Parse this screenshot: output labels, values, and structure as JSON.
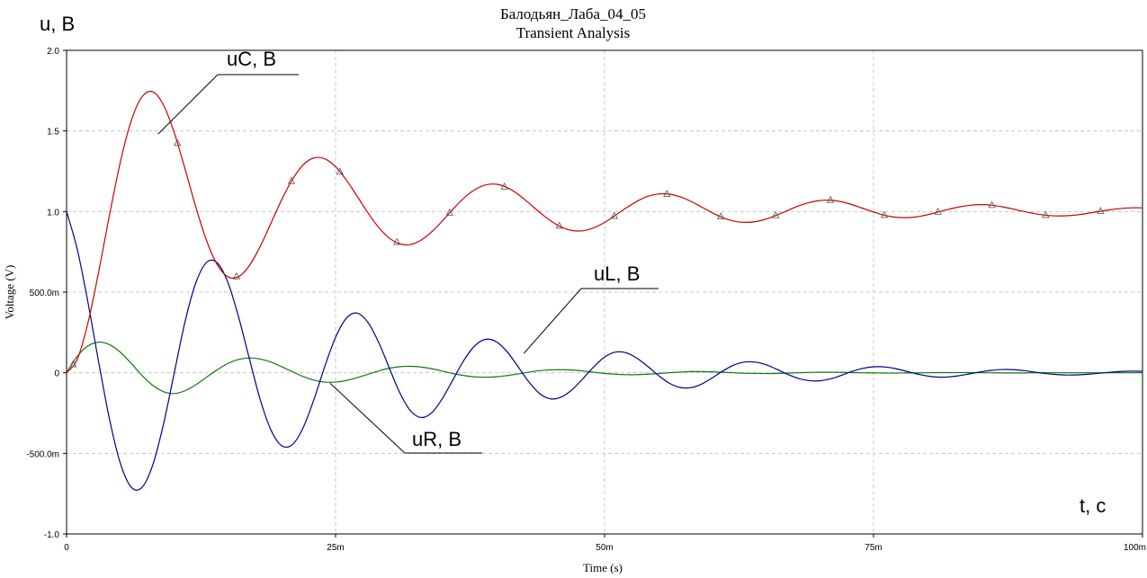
{
  "window": {
    "title": "Балодьян_Лаба_04_05",
    "subtitle": "Transient Analysis"
  },
  "chart_data": {
    "type": "line",
    "title": "Балодьян_Лаба_04_05",
    "subtitle": "Transient Analysis",
    "xlabel": "Time (s)",
    "ylabel": "Voltage (V)",
    "xlim": [
      0,
      0.1
    ],
    "ylim": [
      -1.0,
      2.0
    ],
    "grid": true,
    "x_ticks": [
      {
        "value": 0,
        "label": "0"
      },
      {
        "value": 0.025,
        "label": "25m"
      },
      {
        "value": 0.05,
        "label": "50m"
      },
      {
        "value": 0.075,
        "label": "75m"
      },
      {
        "value": 0.1,
        "label": "100m"
      }
    ],
    "y_ticks": [
      {
        "value": -1.0,
        "label": "-1.0"
      },
      {
        "value": -0.5,
        "label": "-500.0m"
      },
      {
        "value": 0,
        "label": "0"
      },
      {
        "value": 0.5,
        "label": "500.0m"
      },
      {
        "value": 1.0,
        "label": "1.0"
      },
      {
        "value": 1.5,
        "label": "1.5"
      },
      {
        "value": 2.0,
        "label": "2.0"
      }
    ],
    "series": [
      {
        "name": "uC, B",
        "color": "#cc0000",
        "marker": "triangle",
        "x": [
          0,
          0.001,
          0.002,
          0.003,
          0.004,
          0.005,
          0.006,
          0.007,
          0.008,
          0.009,
          0.01,
          0.011,
          0.012,
          0.013,
          0.014,
          0.015,
          0.016,
          0.017,
          0.018,
          0.019,
          0.02,
          0.021,
          0.022,
          0.023,
          0.024,
          0.025,
          0.026,
          0.027,
          0.028,
          0.029,
          0.03,
          0.031,
          0.032,
          0.033,
          0.034,
          0.035,
          0.036,
          0.037,
          0.038,
          0.039,
          0.04,
          0.041,
          0.042,
          0.043,
          0.044,
          0.045,
          0.046,
          0.047,
          0.048,
          0.049,
          0.05,
          0.051,
          0.052,
          0.053,
          0.054,
          0.055,
          0.056,
          0.057,
          0.058,
          0.059,
          0.06,
          0.061,
          0.062,
          0.063,
          0.064,
          0.065,
          0.066,
          0.067,
          0.068,
          0.069,
          0.07,
          0.071,
          0.072,
          0.073,
          0.074,
          0.075,
          0.076,
          0.077,
          0.078,
          0.079,
          0.08,
          0.081,
          0.082,
          0.083,
          0.084,
          0.085,
          0.086,
          0.087,
          0.088,
          0.089,
          0.09,
          0.091,
          0.092,
          0.093,
          0.094,
          0.095,
          0.096,
          0.097,
          0.098,
          0.099,
          0.1
        ],
        "values": [
          0.0,
          0.084,
          0.313,
          0.632,
          0.982,
          1.307,
          1.561,
          1.711,
          1.743,
          1.662,
          1.491,
          1.267,
          1.031,
          0.822,
          0.671,
          0.595,
          0.597,
          0.666,
          0.784,
          0.928,
          1.074,
          1.2,
          1.29,
          1.333,
          1.327,
          1.278,
          1.196,
          1.096,
          0.993,
          0.902,
          0.835,
          0.799,
          0.796,
          0.825,
          0.878,
          0.947,
          1.021,
          1.088,
          1.138,
          1.166,
          1.169,
          1.147,
          1.105,
          1.051,
          0.993,
          0.942,
          0.903,
          0.882,
          0.881,
          0.899,
          0.932,
          0.976,
          1.022,
          1.063,
          1.094,
          1.109,
          1.108,
          1.092,
          1.064,
          1.029,
          0.993,
          0.962,
          0.941,
          0.933,
          0.937,
          0.953,
          0.978,
          1.006,
          1.034,
          1.055,
          1.068,
          1.07,
          1.061,
          1.043,
          1.02,
          0.997,
          0.977,
          0.965,
          0.962,
          0.967,
          0.98,
          0.997,
          1.014,
          1.029,
          1.039,
          1.043,
          1.039,
          1.029,
          1.015,
          1.0,
          0.987,
          0.977,
          0.973,
          0.974,
          0.98,
          0.99,
          1.001,
          1.011,
          1.019,
          1.023,
          1.023
        ],
        "marker_x": [
          0.0006,
          0.0103,
          0.0158,
          0.0209,
          0.0254,
          0.0307,
          0.0356,
          0.0407,
          0.0458,
          0.0509,
          0.0558,
          0.0608,
          0.0659,
          0.071,
          0.076,
          0.081,
          0.086,
          0.091,
          0.0961
        ]
      },
      {
        "name": "uL, B",
        "color": "#00008b",
        "x": [
          0,
          0.001,
          0.002,
          0.003,
          0.004,
          0.005,
          0.006,
          0.007,
          0.008,
          0.009,
          0.01,
          0.011,
          0.012,
          0.013,
          0.014,
          0.015,
          0.016,
          0.017,
          0.018,
          0.019,
          0.02,
          0.021,
          0.022,
          0.023,
          0.024,
          0.025,
          0.026,
          0.027,
          0.028,
          0.029,
          0.03,
          0.031,
          0.032,
          0.033,
          0.034,
          0.035,
          0.036,
          0.037,
          0.038,
          0.039,
          0.04,
          0.041,
          0.042,
          0.043,
          0.044,
          0.045,
          0.046,
          0.047,
          0.048,
          0.049,
          0.05,
          0.051,
          0.052,
          0.053,
          0.054,
          0.055,
          0.056,
          0.057,
          0.058,
          0.059,
          0.06,
          0.061,
          0.062,
          0.063,
          0.064,
          0.065,
          0.066,
          0.067,
          0.068,
          0.069,
          0.07,
          0.071,
          0.072,
          0.073,
          0.074,
          0.075,
          0.076,
          0.077,
          0.078,
          0.079,
          0.08,
          0.081,
          0.082,
          0.083,
          0.084,
          0.085,
          0.086,
          0.087,
          0.088,
          0.089,
          0.09,
          0.091,
          0.092,
          0.093,
          0.094,
          0.095,
          0.096,
          0.097,
          0.098,
          0.099,
          0.1
        ],
        "values": [
          1.0,
          0.764,
          0.432,
          0.06,
          -0.291,
          -0.562,
          -0.709,
          -0.712,
          -0.574,
          -0.321,
          -0.004,
          0.314,
          0.555,
          0.684,
          0.682,
          0.559,
          0.343,
          0.085,
          -0.167,
          -0.356,
          -0.453,
          -0.445,
          -0.339,
          -0.164,
          0.039,
          0.22,
          0.338,
          0.37,
          0.313,
          0.189,
          0.029,
          -0.128,
          -0.239,
          -0.278,
          -0.244,
          -0.152,
          -0.032,
          0.085,
          0.171,
          0.208,
          0.19,
          0.126,
          0.034,
          -0.06,
          -0.131,
          -0.162,
          -0.15,
          -0.104,
          -0.036,
          0.037,
          0.097,
          0.128,
          0.124,
          0.091,
          0.04,
          -0.016,
          -0.064,
          -0.091,
          -0.093,
          -0.071,
          -0.032,
          0.011,
          0.047,
          0.066,
          0.066,
          0.05,
          0.022,
          -0.009,
          -0.035,
          -0.049,
          -0.05,
          -0.038,
          -0.016,
          0.008,
          0.027,
          0.037,
          0.036,
          0.026,
          0.01,
          -0.007,
          -0.02,
          -0.027,
          -0.026,
          -0.018,
          -0.006,
          0.006,
          0.015,
          0.02,
          0.019,
          0.013,
          0.004,
          -0.005,
          -0.011,
          -0.014,
          -0.013,
          -0.009,
          -0.003,
          0.003,
          0.008,
          0.01,
          0.009
        ]
      },
      {
        "name": "uR, B",
        "color": "#117711",
        "x": [
          0,
          0.001,
          0.002,
          0.003,
          0.004,
          0.005,
          0.006,
          0.007,
          0.008,
          0.009,
          0.01,
          0.011,
          0.012,
          0.013,
          0.014,
          0.015,
          0.016,
          0.017,
          0.018,
          0.019,
          0.02,
          0.021,
          0.022,
          0.023,
          0.024,
          0.025,
          0.026,
          0.027,
          0.028,
          0.029,
          0.03,
          0.031,
          0.032,
          0.033,
          0.034,
          0.035,
          0.036,
          0.037,
          0.038,
          0.039,
          0.04,
          0.041,
          0.042,
          0.043,
          0.044,
          0.045,
          0.046,
          0.047,
          0.048,
          0.049,
          0.05,
          0.051,
          0.052,
          0.053,
          0.054,
          0.055,
          0.056,
          0.057,
          0.058,
          0.059,
          0.06,
          0.061,
          0.062,
          0.063,
          0.064,
          0.065,
          0.066,
          0.067,
          0.068,
          0.069,
          0.07,
          0.071,
          0.072,
          0.073,
          0.074,
          0.075,
          0.076,
          0.077,
          0.078,
          0.079,
          0.08,
          0.081,
          0.082,
          0.083,
          0.084,
          0.085,
          0.086,
          0.087,
          0.088,
          0.089,
          0.09,
          0.091,
          0.092,
          0.093,
          0.094,
          0.095,
          0.096,
          0.097,
          0.098,
          0.099,
          0.1
        ],
        "values": [
          0.0,
          0.103,
          0.167,
          0.19,
          0.174,
          0.127,
          0.059,
          -0.016,
          -0.078,
          -0.117,
          -0.129,
          -0.112,
          -0.075,
          -0.028,
          0.018,
          0.058,
          0.083,
          0.092,
          0.085,
          0.066,
          0.037,
          0.006,
          -0.024,
          -0.046,
          -0.058,
          -0.058,
          -0.048,
          -0.031,
          -0.01,
          0.011,
          0.028,
          0.038,
          0.04,
          0.035,
          0.024,
          0.009,
          -0.006,
          -0.018,
          -0.026,
          -0.028,
          -0.025,
          -0.017,
          -0.007,
          0.004,
          0.013,
          0.018,
          0.019,
          0.017,
          0.011,
          0.003,
          -0.004,
          -0.009,
          -0.012,
          -0.012,
          -0.009,
          -0.005,
          0.0,
          0.004,
          0.007,
          0.007,
          0.006,
          0.003,
          0.0,
          -0.003,
          -0.004,
          -0.005,
          -0.004,
          -0.002,
          0.0,
          0.002,
          0.003,
          0.003,
          0.003,
          0.001,
          0.0,
          -0.001,
          -0.002,
          -0.002,
          -0.001,
          -0.001,
          0.0,
          0.001,
          0.001,
          0.001,
          0.001,
          0.0,
          0.0,
          -0.001,
          -0.001,
          -0.001,
          0.0,
          0.0,
          0.0,
          0.0,
          0.0,
          0.0,
          0.0,
          0.0,
          0.0,
          0.0,
          0.0
        ]
      }
    ],
    "annotations": {
      "y_axis_unit": "u, B",
      "x_axis_unit": "t, c",
      "labels": [
        {
          "text": "uC, B",
          "series": "uC, B",
          "point": [
            0.0085,
            1.48
          ]
        },
        {
          "text": "uL, B",
          "series": "uL, B",
          "point": [
            0.0425,
            0.12
          ]
        },
        {
          "text": "uR, B",
          "series": "uR, B",
          "point": [
            0.0245,
            -0.065
          ]
        }
      ]
    }
  }
}
